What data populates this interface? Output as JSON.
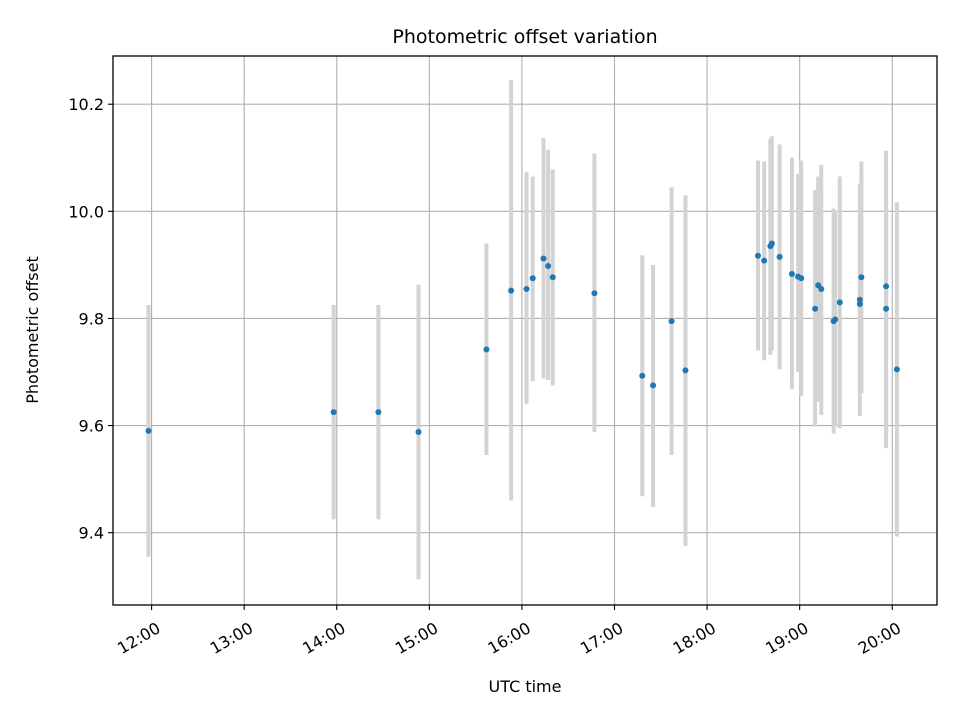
{
  "chart_data": {
    "type": "scatter",
    "title": "Photometric offset variation",
    "xlabel": "UTC time",
    "ylabel": "Photometric offset",
    "xlim": [
      "11:35",
      "20:29"
    ],
    "ylim": [
      9.265,
      10.29
    ],
    "x_ticks": [
      "12:00",
      "13:00",
      "14:00",
      "15:00",
      "16:00",
      "17:00",
      "18:00",
      "19:00",
      "20:00"
    ],
    "y_ticks": [
      "9.4",
      "9.6",
      "9.8",
      "10.0",
      "10.2"
    ],
    "grid": true,
    "point_color": "#1f77b4",
    "errorbar_color": "#d3d3d3",
    "points": [
      {
        "time": "11:58",
        "offset": 9.59,
        "low": 9.355,
        "high": 9.825
      },
      {
        "time": "13:58",
        "offset": 9.625,
        "low": 9.425,
        "high": 9.825
      },
      {
        "time": "14:27",
        "offset": 9.625,
        "low": 9.425,
        "high": 9.825
      },
      {
        "time": "14:53",
        "offset": 9.588,
        "low": 9.313,
        "high": 9.863
      },
      {
        "time": "15:37",
        "offset": 9.742,
        "low": 9.545,
        "high": 9.94
      },
      {
        "time": "15:53",
        "offset": 9.852,
        "low": 9.46,
        "high": 10.245
      },
      {
        "time": "16:03",
        "offset": 9.855,
        "low": 9.64,
        "high": 10.073
      },
      {
        "time": "16:07",
        "offset": 9.875,
        "low": 9.683,
        "high": 10.065
      },
      {
        "time": "16:14",
        "offset": 9.912,
        "low": 9.688,
        "high": 10.137
      },
      {
        "time": "16:17",
        "offset": 9.898,
        "low": 9.685,
        "high": 10.115
      },
      {
        "time": "16:20",
        "offset": 9.877,
        "low": 9.675,
        "high": 10.078
      },
      {
        "time": "16:47",
        "offset": 9.847,
        "low": 9.588,
        "high": 10.108
      },
      {
        "time": "17:18",
        "offset": 9.693,
        "low": 9.468,
        "high": 9.918
      },
      {
        "time": "17:25",
        "offset": 9.675,
        "low": 9.448,
        "high": 9.9
      },
      {
        "time": "17:37",
        "offset": 9.795,
        "low": 9.545,
        "high": 10.045
      },
      {
        "time": "17:46",
        "offset": 9.703,
        "low": 9.375,
        "high": 10.03
      },
      {
        "time": "18:33",
        "offset": 9.917,
        "low": 9.74,
        "high": 10.095
      },
      {
        "time": "18:37",
        "offset": 9.908,
        "low": 9.722,
        "high": 10.093
      },
      {
        "time": "18:41",
        "offset": 9.935,
        "low": 9.732,
        "high": 10.135
      },
      {
        "time": "18:42",
        "offset": 9.94,
        "low": 9.74,
        "high": 10.14
      },
      {
        "time": "18:47",
        "offset": 9.915,
        "low": 9.705,
        "high": 10.125
      },
      {
        "time": "18:55",
        "offset": 9.883,
        "low": 9.668,
        "high": 10.1
      },
      {
        "time": "18:59",
        "offset": 9.878,
        "low": 9.7,
        "high": 10.07
      },
      {
        "time": "19:01",
        "offset": 9.875,
        "low": 9.655,
        "high": 10.095
      },
      {
        "time": "19:10",
        "offset": 9.818,
        "low": 9.598,
        "high": 10.04
      },
      {
        "time": "19:12",
        "offset": 9.862,
        "low": 9.645,
        "high": 10.065
      },
      {
        "time": "19:14",
        "offset": 9.855,
        "low": 9.62,
        "high": 10.087
      },
      {
        "time": "19:22",
        "offset": 9.795,
        "low": 9.585,
        "high": 10.005
      },
      {
        "time": "19:23",
        "offset": 9.798,
        "low": 9.6,
        "high": 9.998
      },
      {
        "time": "19:26",
        "offset": 9.83,
        "low": 9.595,
        "high": 10.065
      },
      {
        "time": "19:39",
        "offset": 9.827,
        "low": 9.618,
        "high": 10.052
      },
      {
        "time": "19:39",
        "offset": 9.835,
        "low": 9.66,
        "high": 10.01
      },
      {
        "time": "19:40",
        "offset": 9.877,
        "low": 9.66,
        "high": 10.093
      },
      {
        "time": "19:56",
        "offset": 9.818,
        "low": 9.558,
        "high": 10.078
      },
      {
        "time": "19:56",
        "offset": 9.86,
        "low": 9.6,
        "high": 10.113
      },
      {
        "time": "20:03",
        "offset": 9.705,
        "low": 9.393,
        "high": 10.017
      }
    ]
  }
}
